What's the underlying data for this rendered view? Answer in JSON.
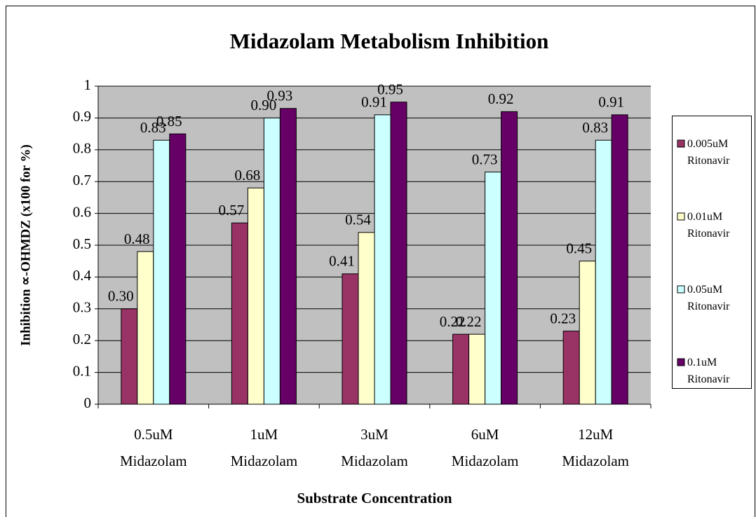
{
  "chart_data": {
    "type": "bar",
    "title": "Midazolam Metabolism  Inhibition",
    "x_label": "Substrate Concentration",
    "y_label": "Inhibition  ∝-OHMDZ (x100 for %)",
    "categories": [
      "0.5uM Midazolam",
      "1uM Midazolam",
      "3uM Midazolam",
      "6uM Midazolam",
      "12uM Midazolam"
    ],
    "series": [
      {
        "name": "0.005uM Ritonavir",
        "color": "#993366",
        "values": [
          0.3,
          0.57,
          0.41,
          0.22,
          0.23
        ],
        "value_labels": [
          "0.30",
          "0.57",
          "0.41",
          "0.22",
          "0.23"
        ]
      },
      {
        "name": "0.01uM Ritonavir",
        "color": "#ffffcc",
        "values": [
          0.48,
          0.68,
          0.54,
          0.22,
          0.45
        ],
        "value_labels": [
          "0.48",
          "0.68",
          "0.54",
          "0.22",
          "0.45"
        ]
      },
      {
        "name": "0.05uM Ritonavir",
        "color": "#ccffff",
        "values": [
          0.83,
          0.9,
          0.91,
          0.73,
          0.83
        ],
        "value_labels": [
          "0.83",
          "0.90",
          "0.91",
          "0.73",
          "0.83"
        ]
      },
      {
        "name": "0.1uM Ritonavir",
        "color": "#660066",
        "values": [
          0.85,
          0.93,
          0.95,
          0.92,
          0.91
        ],
        "value_labels": [
          "0.85",
          "0.93",
          "0.95",
          "0.92",
          "0.91"
        ]
      }
    ],
    "ylim": [
      0,
      1
    ],
    "yticks": [
      0,
      0.1,
      0.2,
      0.3,
      0.4,
      0.5,
      0.6,
      0.7,
      0.8,
      0.9,
      1
    ],
    "grid": true,
    "legend": "right"
  }
}
